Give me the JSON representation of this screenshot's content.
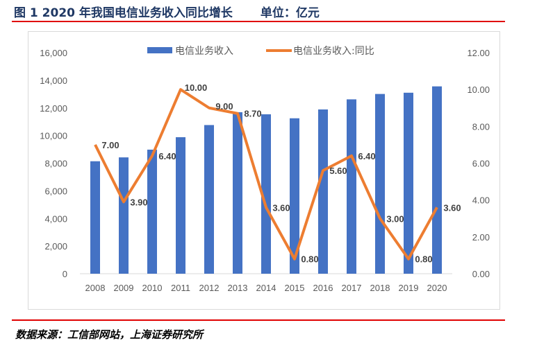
{
  "header": {
    "title": "图 1 2020 年我国电信业务收入同比增长",
    "unit": "单位：亿元"
  },
  "footer": {
    "source": "数据来源：工信部网站，上海证券研究所"
  },
  "chart_data": {
    "type": "bar+line",
    "categories": [
      "2008",
      "2009",
      "2010",
      "2011",
      "2012",
      "2013",
      "2014",
      "2015",
      "2016",
      "2017",
      "2018",
      "2019",
      "2020"
    ],
    "series": [
      {
        "name": "电信业务收入",
        "type": "bar",
        "axis": "left",
        "color": "#4472c4",
        "values": [
          8140,
          8420,
          8980,
          9880,
          10760,
          11690,
          11540,
          11250,
          11890,
          12620,
          13010,
          13100,
          13560
        ]
      },
      {
        "name": "电信业务收入:同比",
        "type": "line",
        "axis": "right",
        "color": "#ed7d31",
        "values": [
          7.0,
          3.9,
          6.4,
          10.0,
          9.0,
          8.7,
          3.6,
          0.8,
          5.6,
          6.4,
          3.0,
          0.8,
          3.6
        ],
        "labels": [
          "7.00",
          "3.90",
          "6.40",
          "10.00",
          "9.00",
          "8.70",
          "3.60",
          "0.80",
          "5.60",
          "6.40",
          "3.00",
          "0.80",
          "3.60"
        ]
      }
    ],
    "left_axis": {
      "range": [
        0,
        16000
      ],
      "ticks": [
        "0",
        "2,000",
        "4,000",
        "6,000",
        "8,000",
        "10,000",
        "12,000",
        "14,000",
        "16,000"
      ]
    },
    "right_axis": {
      "range": [
        0,
        12
      ],
      "ticks": [
        "0.00",
        "2.00",
        "4.00",
        "6.00",
        "8.00",
        "10.00",
        "12.00"
      ]
    },
    "legend": {
      "position": "top",
      "entries": [
        "电信业务收入",
        "电信业务收入:同比"
      ]
    },
    "grid": false
  }
}
